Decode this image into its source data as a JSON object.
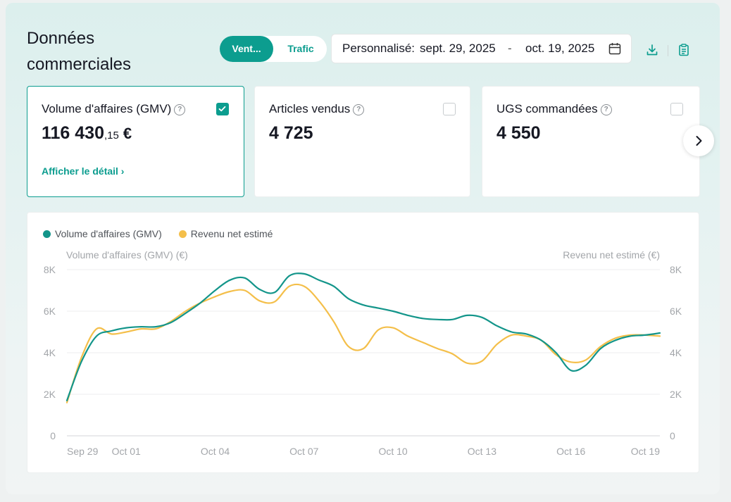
{
  "header": {
    "title": "Données commerciales",
    "tabs": [
      {
        "label": "Vent...",
        "active": true
      },
      {
        "label": "Trafic",
        "active": false
      }
    ],
    "date_range": {
      "label": "Personnalisé:",
      "from": "sept. 29, 2025",
      "separator": "-",
      "to": "oct. 19, 2025"
    },
    "tools": [
      "download-icon",
      "clipboard-icon"
    ]
  },
  "metrics": [
    {
      "title": "Volume d'affaires (GMV)",
      "value_int": "116 430",
      "value_dec": ",15",
      "currency": "€",
      "checked": true,
      "link": "Afficher le détail ›"
    },
    {
      "title": "Articles vendus",
      "value_int": "4 725",
      "checked": false
    },
    {
      "title": "UGS commandées",
      "value_int": "4 550",
      "checked": false
    }
  ],
  "colors": {
    "accent": "#0c9d8f",
    "gmv": "#13958a",
    "revenue": "#f4bf4a"
  },
  "chart_data": {
    "type": "line",
    "legend": [
      "Volume d'affaires (GMV)",
      "Revenu net estimé"
    ],
    "left_axis_title": "Volume d'affaires (GMV) (€)",
    "right_axis_title": "Revenu net estimé (€)",
    "y_ticks": [
      "8K",
      "6K",
      "4K",
      "2K",
      "0"
    ],
    "ylim": [
      0,
      8000
    ],
    "x_ticks": [
      "Sep 29",
      "Oct 01",
      "Oct 04",
      "Oct 07",
      "Oct 10",
      "Oct 13",
      "Oct 16",
      "Oct 19"
    ],
    "x_tick_days": [
      0,
      2,
      5,
      8,
      11,
      14,
      17,
      20
    ],
    "series": [
      {
        "name": "Volume d'affaires (GMV)",
        "x": [
          0,
          0.5,
          1,
          1.5,
          2,
          2.5,
          3,
          3.5,
          4,
          4.5,
          5,
          5.5,
          6,
          6.5,
          7,
          7.5,
          8,
          8.5,
          9,
          9.5,
          10,
          10.5,
          11,
          11.5,
          12,
          12.5,
          13,
          13.5,
          14,
          14.5,
          15,
          15.5,
          16,
          16.5,
          17,
          17.5,
          18,
          18.5,
          19,
          19.5,
          20
        ],
        "values": [
          1700,
          3600,
          4800,
          5050,
          5200,
          5250,
          5250,
          5450,
          5900,
          6400,
          7000,
          7500,
          7600,
          7050,
          6900,
          7700,
          7800,
          7500,
          7200,
          6600,
          6300,
          6150,
          6000,
          5800,
          5650,
          5600,
          5600,
          5800,
          5700,
          5300,
          5000,
          4900,
          4600,
          4000,
          3150,
          3400,
          4200,
          4600,
          4800,
          4850,
          4950
        ]
      },
      {
        "name": "Revenu net estimé",
        "x": [
          0,
          0.5,
          1,
          1.5,
          2,
          2.5,
          3,
          3.5,
          4,
          4.5,
          5,
          5.5,
          6,
          6.5,
          7,
          7.5,
          8,
          8.5,
          9,
          9.5,
          10,
          10.5,
          11,
          11.5,
          12,
          12.5,
          13,
          13.5,
          14,
          14.5,
          15,
          15.5,
          16,
          16.5,
          17,
          17.5,
          18,
          18.5,
          19,
          19.5,
          20
        ],
        "values": [
          1600,
          3800,
          5150,
          4900,
          5000,
          5150,
          5150,
          5500,
          6000,
          6400,
          6700,
          6950,
          7000,
          6500,
          6450,
          7200,
          7200,
          6500,
          5500,
          4300,
          4200,
          5100,
          5200,
          4800,
          4500,
          4200,
          3950,
          3500,
          3600,
          4400,
          4850,
          4800,
          4600,
          3900,
          3550,
          3650,
          4300,
          4700,
          4850,
          4850,
          4800
        ]
      }
    ]
  }
}
